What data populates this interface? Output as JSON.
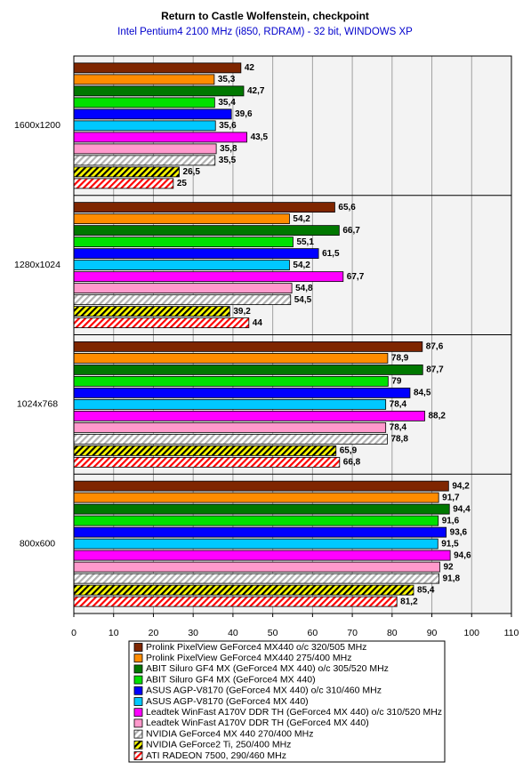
{
  "chart_data": {
    "type": "hbar",
    "title": "Return to Castle Wolfenstein, checkpoint",
    "subtitle": "Intel Pentium4 2100 MHz (i850, RDRAM) - 32 bit, WINDOWS XP",
    "categories": [
      "1600x1200",
      "1280x1024",
      "1024x768",
      "800x600"
    ],
    "xlim": [
      0,
      110
    ],
    "xticks": [
      0,
      10,
      20,
      30,
      40,
      50,
      60,
      70,
      80,
      90,
      100,
      110
    ],
    "grid": true,
    "series": [
      {
        "name": "Prolink PixelView GeForce4 MX440 o/c 320/505 MHz",
        "color": "#7f2600",
        "values": [
          42,
          65.6,
          87.6,
          94.2
        ],
        "value_labels": [
          "42",
          "65,6",
          "87,6",
          "94,2"
        ]
      },
      {
        "name": "Prolink PixelView GeForce4 MX440 275/400 MHz",
        "color": "#ff8c00",
        "values": [
          35.3,
          54.2,
          78.9,
          91.7
        ],
        "value_labels": [
          "35,3",
          "54,2",
          "78,9",
          "91,7"
        ]
      },
      {
        "name": "ABIT Siluro GF4 MX (GeForce4 MX 440) o/c 305/520 MHz",
        "color": "#007800",
        "values": [
          42.7,
          66.7,
          87.7,
          94.4
        ],
        "value_labels": [
          "42,7",
          "66,7",
          "87,7",
          "94,4"
        ]
      },
      {
        "name": "ABIT Siluro GF4 MX (GeForce4 MX 440)",
        "color": "#00e000",
        "values": [
          35.4,
          55.1,
          79,
          91.6
        ],
        "value_labels": [
          "35,4",
          "55,1",
          "79",
          "91,6"
        ]
      },
      {
        "name": "ASUS AGP-V8170 (GeForce4 MX 440) o/c 310/460 MHz",
        "color": "#0000ff",
        "values": [
          39.6,
          61.5,
          84.5,
          93.6
        ],
        "value_labels": [
          "39,6",
          "61,5",
          "84,5",
          "93,6"
        ]
      },
      {
        "name": "ASUS AGP-V8170 (GeForce4 MX 440)",
        "color": "#00c8ff",
        "values": [
          35.6,
          54.2,
          78.4,
          91.5
        ],
        "value_labels": [
          "35,6",
          "54,2",
          "78,4",
          "91,5"
        ]
      },
      {
        "name": "Leadtek WinFast A170V DDR TH (GeForce4 MX 440) o/c 310/520 MHz",
        "color": "#ff00ff",
        "values": [
          43.5,
          67.7,
          88.2,
          94.6
        ],
        "value_labels": [
          "43,5",
          "67,7",
          "88,2",
          "94,6"
        ]
      },
      {
        "name": "Leadtek WinFast A170V DDR TH (GeForce4 MX 440)",
        "color": "#ff99cc",
        "values": [
          35.8,
          54.8,
          78.4,
          92
        ],
        "value_labels": [
          "35,8",
          "54,8",
          "78,4",
          "92"
        ]
      },
      {
        "name": "NVIDIA GeForce4 MX 440 270/400 MHz",
        "color": "#ffffff",
        "hatch": "#b0b0b0",
        "values": [
          35.5,
          54.5,
          78.8,
          91.8
        ],
        "value_labels": [
          "35,5",
          "54,5",
          "78,8",
          "91,8"
        ]
      },
      {
        "name": "NVIDIA GeForce2 Ti, 250/400 MHz",
        "color": "#ffff00",
        "hatch": "#000000",
        "values": [
          26.5,
          39.2,
          65.9,
          85.4
        ],
        "value_labels": [
          "26,5",
          "39,2",
          "65,9",
          "85,4"
        ]
      },
      {
        "name": "ATI RADEON 7500, 290/460 MHz",
        "color": "#ffffff",
        "hatch": "#ff0000",
        "values": [
          25,
          44,
          66.8,
          81.2
        ],
        "value_labels": [
          "25",
          "44",
          "66,8",
          "81,2"
        ]
      }
    ]
  }
}
